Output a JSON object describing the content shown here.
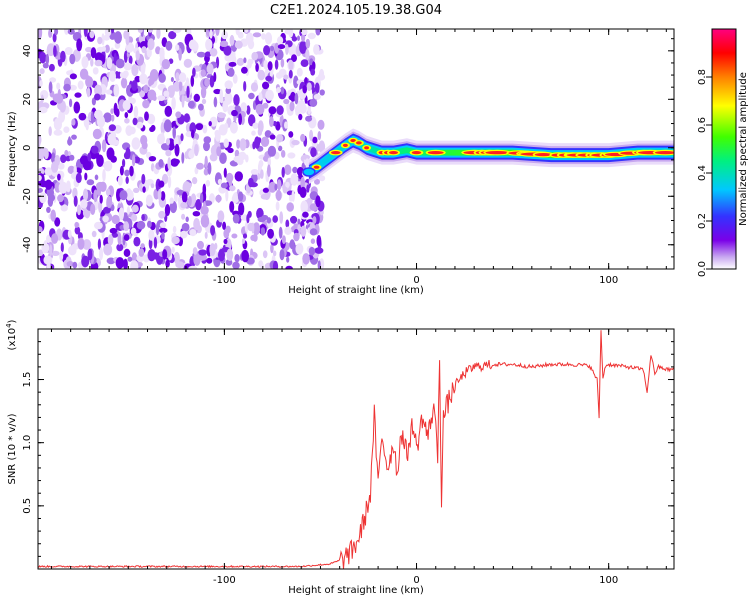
{
  "title": "C2E1.2024.105.19.38.G04",
  "chart_data": [
    {
      "type": "heatmap",
      "xlabel": "Height of straight line (km)",
      "ylabel": "Frequency (Hz)",
      "xlim": [
        -197,
        134
      ],
      "ylim": [
        -50,
        49
      ],
      "xticks": [
        -100,
        0,
        100
      ],
      "xtick_labels": [
        "-100",
        "0",
        "100"
      ],
      "yticks": [
        -40,
        -20,
        0,
        20,
        40
      ],
      "ytick_labels": [
        "-40",
        "-20",
        "0",
        "20",
        "40"
      ],
      "noise_region_x": [
        -197,
        -49
      ],
      "ridge": {
        "x": [
          -56,
          -52,
          -47,
          -42,
          -37,
          -33,
          -30,
          -26,
          -22,
          -18,
          -12,
          -5,
          0,
          10,
          30,
          50,
          70,
          85,
          100,
          115,
          125,
          134
        ],
        "y": [
          -10,
          -8,
          -5,
          -2,
          1,
          3,
          2,
          0,
          -1,
          -2,
          -2,
          -1,
          -2,
          -2,
          -2,
          -2,
          -3,
          -3,
          -3,
          -2,
          -2,
          -2
        ]
      },
      "colorbar": {
        "label": "Normalized spectral amplitude",
        "range": [
          0,
          1
        ],
        "ticks": [
          0.0,
          0.2,
          0.4,
          0.6,
          0.8
        ],
        "tick_labels": [
          "0.0",
          "0.2",
          "0.4",
          "0.6",
          "0.8"
        ],
        "colors": [
          "#ffffff",
          "#c8a8f0",
          "#7a00e8",
          "#3333ff",
          "#00c8ff",
          "#00f080",
          "#40ff00",
          "#ffff00",
          "#ff8000",
          "#ff0000",
          "#ff0080"
        ]
      }
    },
    {
      "type": "line",
      "xlabel": "Height of straight line (km)",
      "ylabel": "SNR (10 * v/v)",
      "y_exponent": "(x10",
      "y_exponent_power": "4",
      "xlim": [
        -197,
        134
      ],
      "ylim": [
        0,
        1.9
      ],
      "xticks": [
        -100,
        0,
        100
      ],
      "xtick_labels": [
        "-100",
        "0",
        "100"
      ],
      "yticks": [
        0.5,
        1.0,
        1.5
      ],
      "ytick_labels": [
        "0.5",
        "1.0",
        "1.5"
      ],
      "color": "#ee3333",
      "series": [
        {
          "x": [
            -197,
            -150,
            -100,
            -60,
            -45,
            -38,
            -33,
            -30,
            -27,
            -24,
            -22,
            -20,
            -18,
            -15,
            -12,
            -10,
            -8,
            -5,
            -2,
            0,
            3,
            6,
            9,
            11,
            12,
            13,
            14,
            16,
            20,
            25,
            30,
            40,
            50,
            60,
            70,
            80,
            90,
            94,
            95,
            96,
            97,
            98,
            100,
            110,
            118,
            120,
            122,
            124,
            126,
            130,
            134
          ],
          "y": [
            0.02,
            0.02,
            0.02,
            0.02,
            0.04,
            0.08,
            0.15,
            0.25,
            0.4,
            0.6,
            1.22,
            0.65,
            1.05,
            0.8,
            1.0,
            0.75,
            1.1,
            0.9,
            1.15,
            0.95,
            1.2,
            1.05,
            1.3,
            0.9,
            1.72,
            0.55,
            1.2,
            1.3,
            1.45,
            1.55,
            1.6,
            1.62,
            1.62,
            1.6,
            1.62,
            1.62,
            1.61,
            1.5,
            1.2,
            1.9,
            1.5,
            1.6,
            1.62,
            1.6,
            1.58,
            1.4,
            1.7,
            1.55,
            1.6,
            1.58,
            1.58
          ]
        }
      ]
    }
  ]
}
